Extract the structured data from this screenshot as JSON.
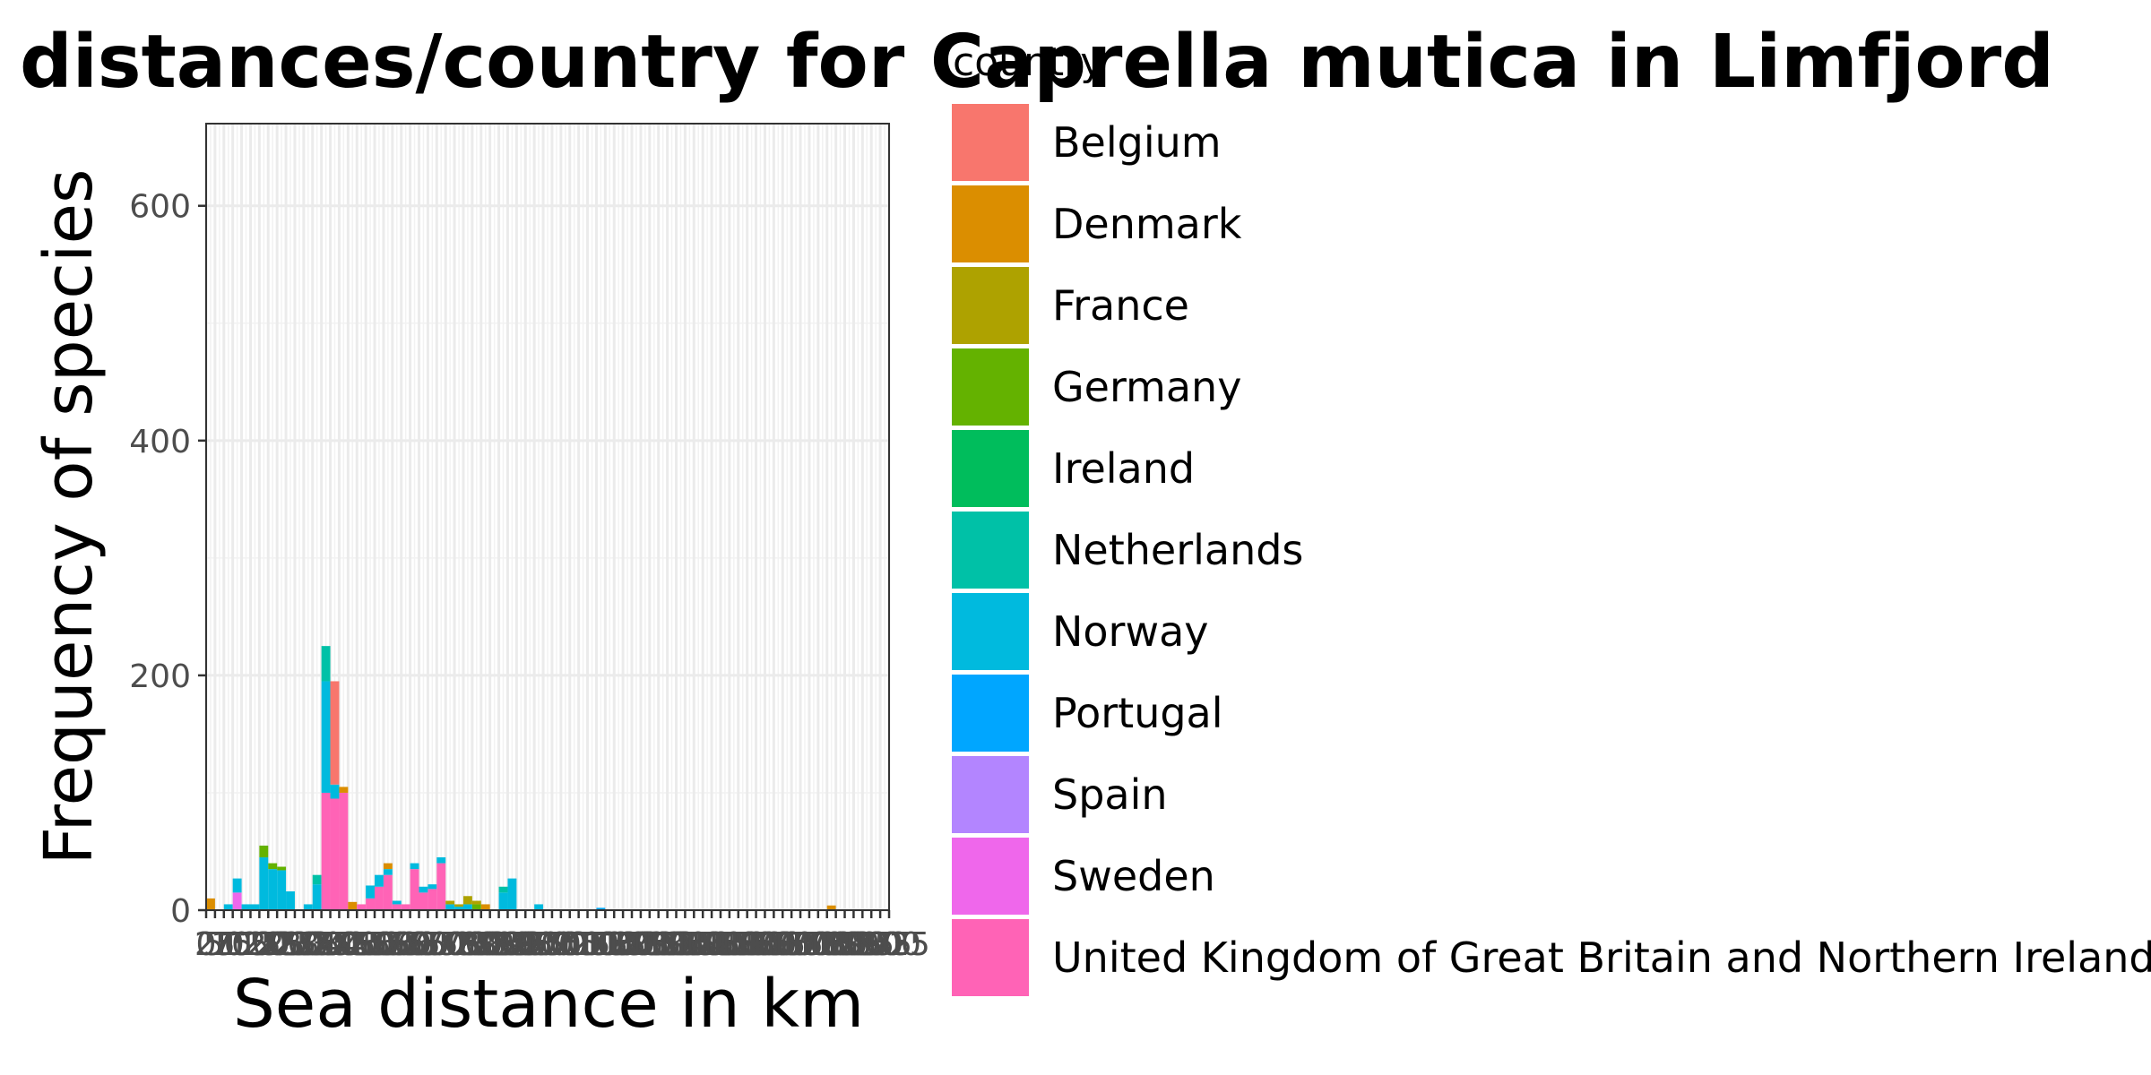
{
  "chart_data": {
    "type": "bar",
    "stacked": true,
    "title": "distances/country for Caprella mutica in Limfjord",
    "xlabel": "Sea distance in km",
    "ylabel": "Frequency of species",
    "xlim": [
      0,
      1925
    ],
    "ylim": [
      0,
      670
    ],
    "bin_width": 25,
    "x_ticks": [
      "0",
      "25",
      "50",
      "75",
      "100",
      "125",
      "150",
      "175",
      "200",
      "225",
      "250",
      "275",
      "300",
      "325",
      "350",
      "375",
      "400",
      "425",
      "450",
      "475",
      "500",
      "525",
      "550",
      "575",
      "600",
      "625",
      "650",
      "675",
      "700",
      "725",
      "750",
      "775",
      "800",
      "825",
      "850",
      "875",
      "900",
      "925",
      "950",
      "975",
      "1000",
      "1025",
      "1050",
      "1075",
      "1100",
      "1125",
      "1150",
      "1175",
      "1200",
      "1225",
      "1250",
      "1275",
      "1300",
      "1325",
      "1350",
      "1375",
      "1400",
      "1425",
      "1450",
      "1475",
      "1500",
      "1525",
      "1550",
      "1575",
      "1600",
      "1625",
      "1650",
      "1675",
      "1700",
      "1725",
      "1750",
      "1775",
      "1800",
      "1825",
      "1850",
      "1875",
      "1900",
      "1925"
    ],
    "y_ticks": [
      "0",
      "200",
      "400",
      "600"
    ],
    "legend_title": "country",
    "legend": [
      {
        "name": "Belgium",
        "color": "#F8766D"
      },
      {
        "name": "Denmark",
        "color": "#DB8E00"
      },
      {
        "name": "France",
        "color": "#AEA200"
      },
      {
        "name": "Germany",
        "color": "#64B200"
      },
      {
        "name": "Ireland",
        "color": "#00BD5C"
      },
      {
        "name": "Netherlands",
        "color": "#00C1A7"
      },
      {
        "name": "Norway",
        "color": "#00BADE"
      },
      {
        "name": "Portugal",
        "color": "#00A6FF"
      },
      {
        "name": "Spain",
        "color": "#B385FF"
      },
      {
        "name": "Sweden",
        "color": "#EF67EB"
      },
      {
        "name": "United Kingdom of Great Britain and Northern Ireland",
        "color": "#FF63B6"
      }
    ],
    "bins": [
      {
        "x": 0,
        "stack": [
          {
            "country": "Denmark",
            "value": 10
          }
        ]
      },
      {
        "x": 50,
        "stack": [
          {
            "country": "Norway",
            "value": 5
          }
        ]
      },
      {
        "x": 75,
        "stack": [
          {
            "country": "Sweden",
            "value": 15
          },
          {
            "country": "Norway",
            "value": 12
          }
        ]
      },
      {
        "x": 100,
        "stack": [
          {
            "country": "Norway",
            "value": 5
          }
        ]
      },
      {
        "x": 125,
        "stack": [
          {
            "country": "Norway",
            "value": 5
          }
        ]
      },
      {
        "x": 150,
        "stack": [
          {
            "country": "Norway",
            "value": 45
          },
          {
            "country": "Germany",
            "value": 10
          }
        ]
      },
      {
        "x": 175,
        "stack": [
          {
            "country": "Norway",
            "value": 35
          },
          {
            "country": "Germany",
            "value": 5
          }
        ]
      },
      {
        "x": 200,
        "stack": [
          {
            "country": "Norway",
            "value": 34
          },
          {
            "country": "Germany",
            "value": 3
          }
        ]
      },
      {
        "x": 225,
        "stack": [
          {
            "country": "Norway",
            "value": 16
          }
        ]
      },
      {
        "x": 275,
        "stack": [
          {
            "country": "Norway",
            "value": 5
          }
        ]
      },
      {
        "x": 300,
        "stack": [
          {
            "country": "Norway",
            "value": 22
          },
          {
            "country": "Netherlands",
            "value": 8
          }
        ]
      },
      {
        "x": 325,
        "stack": [
          {
            "country": "United Kingdom of Great Britain and Northern Ireland",
            "value": 100
          },
          {
            "country": "Norway",
            "value": 95
          },
          {
            "country": "Netherlands",
            "value": 30
          }
        ]
      },
      {
        "x": 350,
        "stack": [
          {
            "country": "United Kingdom of Great Britain and Northern Ireland",
            "value": 95
          },
          {
            "country": "Norway",
            "value": 12
          },
          {
            "country": "Belgium",
            "value": 88
          }
        ]
      },
      {
        "x": 375,
        "stack": [
          {
            "country": "United Kingdom of Great Britain and Northern Ireland",
            "value": 100
          },
          {
            "country": "Denmark",
            "value": 5
          }
        ]
      },
      {
        "x": 400,
        "stack": [
          {
            "country": "Denmark",
            "value": 7
          }
        ]
      },
      {
        "x": 425,
        "stack": [
          {
            "country": "United Kingdom of Great Britain and Northern Ireland",
            "value": 5
          }
        ]
      },
      {
        "x": 450,
        "stack": [
          {
            "country": "United Kingdom of Great Britain and Northern Ireland",
            "value": 10
          },
          {
            "country": "Norway",
            "value": 11
          }
        ]
      },
      {
        "x": 475,
        "stack": [
          {
            "country": "United Kingdom of Great Britain and Northern Ireland",
            "value": 20
          },
          {
            "country": "Norway",
            "value": 10
          }
        ]
      },
      {
        "x": 500,
        "stack": [
          {
            "country": "United Kingdom of Great Britain and Northern Ireland",
            "value": 30
          },
          {
            "country": "Norway",
            "value": 5
          },
          {
            "country": "Denmark",
            "value": 5
          }
        ]
      },
      {
        "x": 525,
        "stack": [
          {
            "country": "United Kingdom of Great Britain and Northern Ireland",
            "value": 5
          },
          {
            "country": "Norway",
            "value": 3
          }
        ]
      },
      {
        "x": 550,
        "stack": [
          {
            "country": "United Kingdom of Great Britain and Northern Ireland",
            "value": 5
          }
        ]
      },
      {
        "x": 575,
        "stack": [
          {
            "country": "United Kingdom of Great Britain and Northern Ireland",
            "value": 35
          },
          {
            "country": "Norway",
            "value": 5
          }
        ]
      },
      {
        "x": 600,
        "stack": [
          {
            "country": "United Kingdom of Great Britain and Northern Ireland",
            "value": 15
          },
          {
            "country": "Norway",
            "value": 5
          }
        ]
      },
      {
        "x": 625,
        "stack": [
          {
            "country": "United Kingdom of Great Britain and Northern Ireland",
            "value": 18
          },
          {
            "country": "Norway",
            "value": 4
          }
        ]
      },
      {
        "x": 650,
        "stack": [
          {
            "country": "United Kingdom of Great Britain and Northern Ireland",
            "value": 40
          },
          {
            "country": "Norway",
            "value": 5
          }
        ]
      },
      {
        "x": 675,
        "stack": [
          {
            "country": "Norway",
            "value": 5
          },
          {
            "country": "France",
            "value": 3
          }
        ]
      },
      {
        "x": 700,
        "stack": [
          {
            "country": "Norway",
            "value": 3
          },
          {
            "country": "France",
            "value": 2
          }
        ]
      },
      {
        "x": 725,
        "stack": [
          {
            "country": "Norway",
            "value": 5
          },
          {
            "country": "France",
            "value": 7
          }
        ]
      },
      {
        "x": 750,
        "stack": [
          {
            "country": "Germany",
            "value": 5
          },
          {
            "country": "France",
            "value": 3
          }
        ]
      },
      {
        "x": 775,
        "stack": [
          {
            "country": "Denmark",
            "value": 5
          }
        ]
      },
      {
        "x": 825,
        "stack": [
          {
            "country": "Norway",
            "value": 15
          },
          {
            "country": "Netherlands",
            "value": 5
          }
        ]
      },
      {
        "x": 850,
        "stack": [
          {
            "country": "Norway",
            "value": 27
          }
        ]
      },
      {
        "x": 925,
        "stack": [
          {
            "country": "Norway",
            "value": 5
          }
        ]
      },
      {
        "x": 1100,
        "stack": [
          {
            "country": "Portugal",
            "value": 2
          }
        ]
      },
      {
        "x": 1750,
        "stack": [
          {
            "country": "Denmark",
            "value": 4
          }
        ]
      }
    ]
  }
}
